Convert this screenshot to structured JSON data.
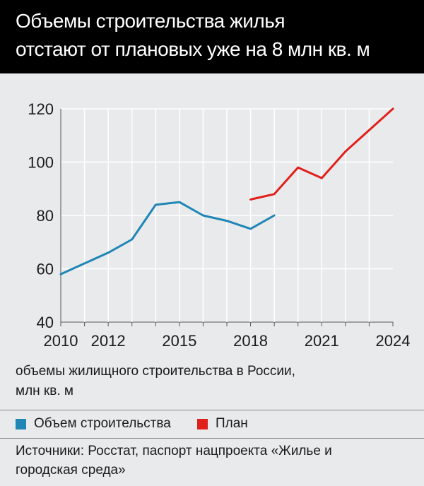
{
  "header": {
    "title": "Объемы строительства жилья\nотстают от плановых уже на 8 млн кв. м"
  },
  "chart_data": {
    "type": "line",
    "x_ticks": [
      2010,
      2012,
      2015,
      2018,
      2021,
      2024
    ],
    "y_ticks": [
      40,
      60,
      80,
      100,
      120
    ],
    "xlim": [
      2010,
      2024
    ],
    "ylim": [
      40,
      120
    ],
    "grid": true,
    "legend_position": "bottom",
    "series": [
      {
        "name": "Объем строительства",
        "color": "#1f86b5",
        "x": [
          2010,
          2011,
          2012,
          2013,
          2014,
          2015,
          2016,
          2017,
          2018,
          2019
        ],
        "y": [
          58,
          62,
          66,
          71,
          84,
          85,
          80,
          78,
          75,
          80
        ]
      },
      {
        "name": "План",
        "color": "#e0201b",
        "x": [
          2018,
          2019,
          2020,
          2021,
          2022,
          2023,
          2024
        ],
        "y": [
          86,
          88,
          98,
          94,
          104,
          112,
          120
        ]
      }
    ]
  },
  "axis_note": "объемы жилищного строительства в России,\nмлн кв. м",
  "legend": [
    {
      "label": "Объем строительства",
      "color": "#1f86b5"
    },
    {
      "label": "План",
      "color": "#e0201b"
    }
  ],
  "source": "Источники: Росстат, паспорт нацпроекта «Жилье и\nгородская среда»"
}
